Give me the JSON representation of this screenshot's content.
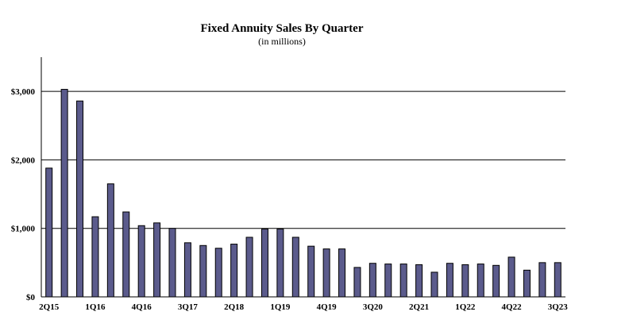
{
  "chart_data": {
    "type": "bar",
    "title": "Fixed Annuity Sales By Quarter",
    "subtitle": "(in millions)",
    "xlabel": "",
    "ylabel": "",
    "ylim": [
      0,
      3500
    ],
    "grid": true,
    "legend": "none",
    "bar_color": "#5b5b8c",
    "y_ticks": [
      0,
      1000,
      2000,
      3000
    ],
    "y_tick_labels": [
      "$0",
      "$1,000",
      "$2,000",
      "$3,000"
    ],
    "x_tick_labels": [
      "2Q15",
      "1Q16",
      "4Q16",
      "3Q17",
      "2Q18",
      "1Q19",
      "4Q19",
      "3Q20",
      "2Q21",
      "1Q22",
      "4Q22",
      "3Q23"
    ],
    "categories": [
      "2Q15",
      "3Q15",
      "4Q15",
      "1Q16",
      "2Q16",
      "3Q16",
      "4Q16",
      "1Q17",
      "2Q17",
      "3Q17",
      "4Q17",
      "1Q18",
      "2Q18",
      "3Q18",
      "4Q18",
      "1Q19",
      "2Q19",
      "3Q19",
      "4Q19",
      "1Q20",
      "2Q20",
      "3Q20",
      "4Q20",
      "1Q21",
      "2Q21",
      "3Q21",
      "4Q21",
      "1Q22",
      "2Q22",
      "3Q22",
      "4Q22",
      "1Q23",
      "2Q23",
      "3Q23"
    ],
    "values": [
      1880,
      3030,
      2860,
      1170,
      1650,
      1240,
      1040,
      1080,
      1000,
      790,
      750,
      710,
      770,
      870,
      990,
      990,
      870,
      740,
      700,
      700,
      430,
      490,
      480,
      480,
      470,
      360,
      490,
      470,
      480,
      460,
      580,
      390,
      500,
      500
    ]
  }
}
